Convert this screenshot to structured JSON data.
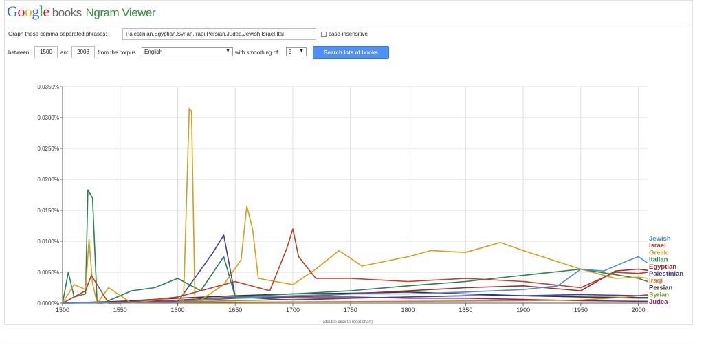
{
  "header": {
    "logo_google": "Google",
    "logo_books": "books",
    "app_name": "Ngram Viewer"
  },
  "form": {
    "phrases_label": "Graph these comma-separated phrases:",
    "phrases_value": "Palestinian,Egyptian,Syrian,Iraqi,Persian,Judea,Jewish,Israel,Ital",
    "case_insensitive_label": "case-insensitive",
    "between_label": "between",
    "start_year": "1500",
    "and_label": "and",
    "end_year": "2008",
    "corpus_label": "from the corpus",
    "corpus_value": "English",
    "smoothing_label": "with smoothing of",
    "smoothing_value": "3",
    "search_button": "Search lots of books"
  },
  "chart": {
    "reset_hint": "(double click to reset chart)"
  },
  "chart_data": {
    "type": "line",
    "xlim": [
      1500,
      2008
    ],
    "ylim": [
      0,
      0.035
    ],
    "x_ticks": [
      "1500",
      "1550",
      "1600",
      "1650",
      "1700",
      "1750",
      "1800",
      "1850",
      "1900",
      "1950",
      "2000"
    ],
    "y_ticks": [
      "0.0000%",
      "0.0050%",
      "0.0100%",
      "0.0150%",
      "0.0200%",
      "0.0250%",
      "0.0300%",
      "0.0350%"
    ],
    "grid": true,
    "legend_placement": "right",
    "series": [
      {
        "name": "Jewish",
        "color": "#4a8fd6",
        "x": [
          1500,
          1600,
          1640,
          1700,
          1750,
          1800,
          1850,
          1900,
          1930,
          1950,
          1970,
          1990,
          2000,
          2008
        ],
        "y": [
          0,
          0.0002,
          0.0008,
          0.0012,
          0.0015,
          0.0015,
          0.0018,
          0.0022,
          0.0028,
          0.0055,
          0.0052,
          0.0068,
          0.0075,
          0.0065
        ]
      },
      {
        "name": "Israel",
        "color": "#c23b22",
        "x": [
          1500,
          1520,
          1525,
          1530,
          1540,
          1550,
          1600,
          1650,
          1680,
          1695,
          1700,
          1705,
          1720,
          1750,
          1800,
          1850,
          1900,
          1950,
          1980,
          2000,
          2008
        ],
        "y": [
          0,
          0.002,
          0.0045,
          0.003,
          0,
          0,
          0.001,
          0.0035,
          0.002,
          0.009,
          0.012,
          0.0075,
          0.004,
          0.004,
          0.0035,
          0.004,
          0.0035,
          0.0025,
          0.005,
          0.0048,
          0.005
        ]
      },
      {
        "name": "Greek",
        "color": "#d4a019",
        "x": [
          1500,
          1510,
          1520,
          1523,
          1526,
          1530,
          1540,
          1560,
          1600,
          1605,
          1610,
          1612,
          1615,
          1620,
          1640,
          1655,
          1660,
          1665,
          1670,
          1700,
          1720,
          1740,
          1760,
          1800,
          1820,
          1850,
          1880,
          1900,
          1950,
          1980,
          2000,
          2008
        ],
        "y": [
          0,
          0.003,
          0.0022,
          0.0103,
          0.0032,
          0,
          0.0025,
          0,
          0.001,
          0,
          0.0315,
          0.031,
          0.0005,
          0.0005,
          0.003,
          0.007,
          0.0157,
          0.012,
          0.004,
          0.003,
          0.0055,
          0.0085,
          0.006,
          0.0075,
          0.0085,
          0.0082,
          0.0098,
          0.0085,
          0.0055,
          0.004,
          0.0042,
          0.004
        ]
      },
      {
        "name": "Italian",
        "color": "#2a7f55",
        "x": [
          1500,
          1505,
          1510,
          1520,
          1522,
          1526,
          1530,
          1535,
          1560,
          1580,
          1600,
          1620,
          1640,
          1650,
          1700,
          1750,
          1800,
          1850,
          1900,
          1950,
          2000,
          2008
        ],
        "y": [
          0,
          0.005,
          0.001,
          0.0015,
          0.0183,
          0.017,
          0,
          0,
          0.002,
          0.0025,
          0.004,
          0.002,
          0.0075,
          0.001,
          0.0015,
          0.002,
          0.0028,
          0.0035,
          0.0045,
          0.0055,
          0.004,
          0.0035
        ]
      },
      {
        "name": "Egyptian",
        "color": "#a52a2a",
        "x": [
          1500,
          1600,
          1650,
          1700,
          1750,
          1800,
          1850,
          1900,
          1950,
          1980,
          2000,
          2008
        ],
        "y": [
          0,
          0.0005,
          0.001,
          0.001,
          0.0015,
          0.002,
          0.0025,
          0.0028,
          0.002,
          0.0052,
          0.0055,
          0.0053
        ]
      },
      {
        "name": "Palestinian",
        "color": "#3b3fa8",
        "x": [
          1500,
          1600,
          1630,
          1640,
          1650,
          1700,
          1750,
          1800,
          1850,
          1900,
          1950,
          2000,
          2008
        ],
        "y": [
          0,
          0.0002,
          0.008,
          0.011,
          0.001,
          0.0005,
          0.0008,
          0.001,
          0.0012,
          0.0012,
          0.0014,
          0.0012,
          0.0012
        ]
      },
      {
        "name": "Iraqi",
        "color": "#e07a1f",
        "x": [
          1500,
          1600,
          1700,
          1800,
          1900,
          1950,
          1990,
          2000,
          2008
        ],
        "y": [
          0,
          0.0001,
          0.0002,
          0.0003,
          0.0004,
          0.0005,
          0.001,
          0.0012,
          0.0014
        ]
      },
      {
        "name": "Persian",
        "color": "#333333",
        "x": [
          1500,
          1550,
          1600,
          1650,
          1700,
          1750,
          1800,
          1850,
          1900,
          1950,
          2000,
          2008
        ],
        "y": [
          0,
          0.0003,
          0.0008,
          0.0012,
          0.0015,
          0.0016,
          0.0018,
          0.0015,
          0.0012,
          0.001,
          0.0009,
          0.0009
        ]
      },
      {
        "name": "Syrian",
        "color": "#7a9e2f",
        "x": [
          1500,
          1600,
          1650,
          1700,
          1750,
          1800,
          1850,
          1900,
          1950,
          2000,
          2008
        ],
        "y": [
          0,
          0.0002,
          0.0004,
          0.0006,
          0.0008,
          0.001,
          0.0012,
          0.0012,
          0.001,
          0.0008,
          0.0008
        ]
      },
      {
        "name": "Judea",
        "color": "#8b2266",
        "x": [
          1500,
          1600,
          1650,
          1700,
          1750,
          1800,
          1850,
          1900,
          1950,
          2000,
          2008
        ],
        "y": [
          0,
          0.0003,
          0.0008,
          0.001,
          0.001,
          0.0008,
          0.0008,
          0.0006,
          0.0004,
          0.0003,
          0.0003
        ]
      }
    ]
  }
}
